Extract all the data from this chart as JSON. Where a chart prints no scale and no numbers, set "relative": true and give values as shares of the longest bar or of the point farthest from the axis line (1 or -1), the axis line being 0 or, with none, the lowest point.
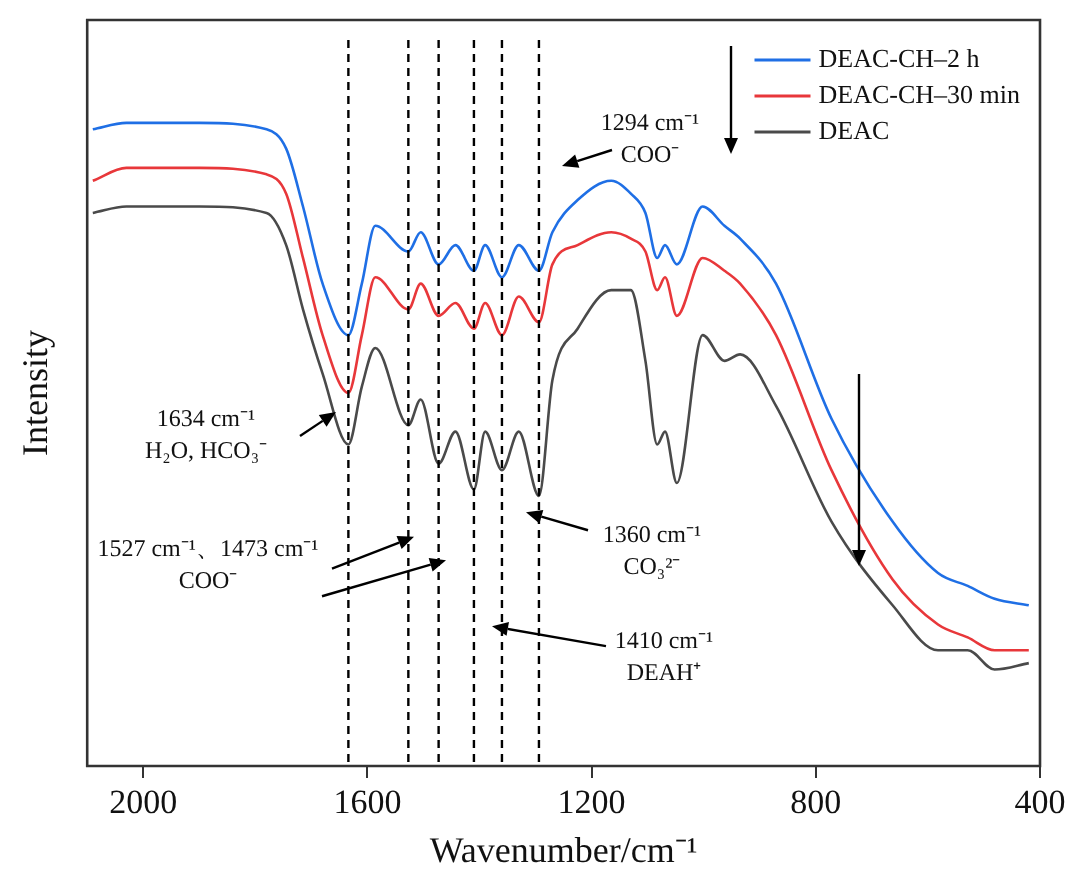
{
  "chart_data": {
    "type": "line",
    "relative": true,
    "xlabel": "Wavenumber/cm⁻¹",
    "ylabel": "Intensity",
    "xlim": [
      2100,
      400
    ],
    "xticks": [
      2000,
      1600,
      1200,
      800,
      400
    ],
    "tick_labels": "x",
    "legend": "top right",
    "line_style": "solid",
    "marker": "none",
    "x": [
      2090,
      2030,
      1900,
      1780,
      1745,
      1715,
      1680,
      1634,
      1610,
      1586,
      1527,
      1505,
      1473,
      1443,
      1410,
      1390,
      1360,
      1330,
      1294,
      1270,
      1225,
      1165,
      1130,
      1104,
      1083,
      1069,
      1048,
      1002,
      963,
      935,
      871,
      772,
      663,
      582,
      529,
      481,
      420
    ],
    "series": [
      {
        "name": "DEAC-CH–2 h",
        "color": "#1f6fe5",
        "values": [
          0.99,
          1.0,
          1.0,
          0.99,
          0.96,
          0.87,
          0.75,
          0.67,
          0.75,
          0.84,
          0.8,
          0.83,
          0.78,
          0.81,
          0.77,
          0.81,
          0.76,
          0.81,
          0.77,
          0.83,
          0.88,
          0.91,
          0.89,
          0.86,
          0.79,
          0.81,
          0.78,
          0.87,
          0.84,
          0.82,
          0.75,
          0.54,
          0.38,
          0.3,
          0.28,
          0.26,
          0.25
        ]
      },
      {
        "name": "DEAC-CH–30 min",
        "color": "#e8373a",
        "values": [
          0.91,
          0.93,
          0.93,
          0.92,
          0.89,
          0.79,
          0.67,
          0.58,
          0.67,
          0.76,
          0.71,
          0.75,
          0.7,
          0.72,
          0.68,
          0.72,
          0.67,
          0.73,
          0.69,
          0.78,
          0.81,
          0.83,
          0.82,
          0.8,
          0.74,
          0.76,
          0.7,
          0.79,
          0.77,
          0.75,
          0.67,
          0.46,
          0.29,
          0.22,
          0.2,
          0.18,
          0.18
        ]
      },
      {
        "name": "DEAC",
        "color": "#4a4a4a",
        "values": [
          0.86,
          0.87,
          0.87,
          0.86,
          0.81,
          0.71,
          0.61,
          0.5,
          0.59,
          0.65,
          0.53,
          0.57,
          0.47,
          0.52,
          0.43,
          0.52,
          0.46,
          0.52,
          0.42,
          0.6,
          0.68,
          0.74,
          0.74,
          0.63,
          0.5,
          0.52,
          0.44,
          0.67,
          0.63,
          0.64,
          0.56,
          0.38,
          0.25,
          0.18,
          0.18,
          0.15,
          0.16
        ]
      }
    ],
    "ref_lines": [
      {
        "axis": "x",
        "value": 1634,
        "color": "#000000",
        "line_style": "dashed"
      },
      {
        "axis": "x",
        "value": 1527,
        "color": "#000000",
        "line_style": "dashed"
      },
      {
        "axis": "x",
        "value": 1473,
        "color": "#000000",
        "line_style": "dashed"
      },
      {
        "axis": "x",
        "value": 1410,
        "color": "#000000",
        "line_style": "dashed"
      },
      {
        "axis": "x",
        "value": 1360,
        "color": "#000000",
        "line_style": "dashed"
      },
      {
        "axis": "x",
        "value": 1294,
        "color": "#000000",
        "line_style": "dashed"
      }
    ],
    "annotations": [
      "1634 cm⁻¹\nH₂O, HCO₃⁻",
      "1527 cm⁻¹、1473 cm⁻¹\nCOO⁻",
      "1360 cm⁻¹\nCO₃²⁻",
      "1410 cm⁻¹\nDEAH⁺",
      "1294 cm⁻¹\nCOO⁻"
    ]
  }
}
